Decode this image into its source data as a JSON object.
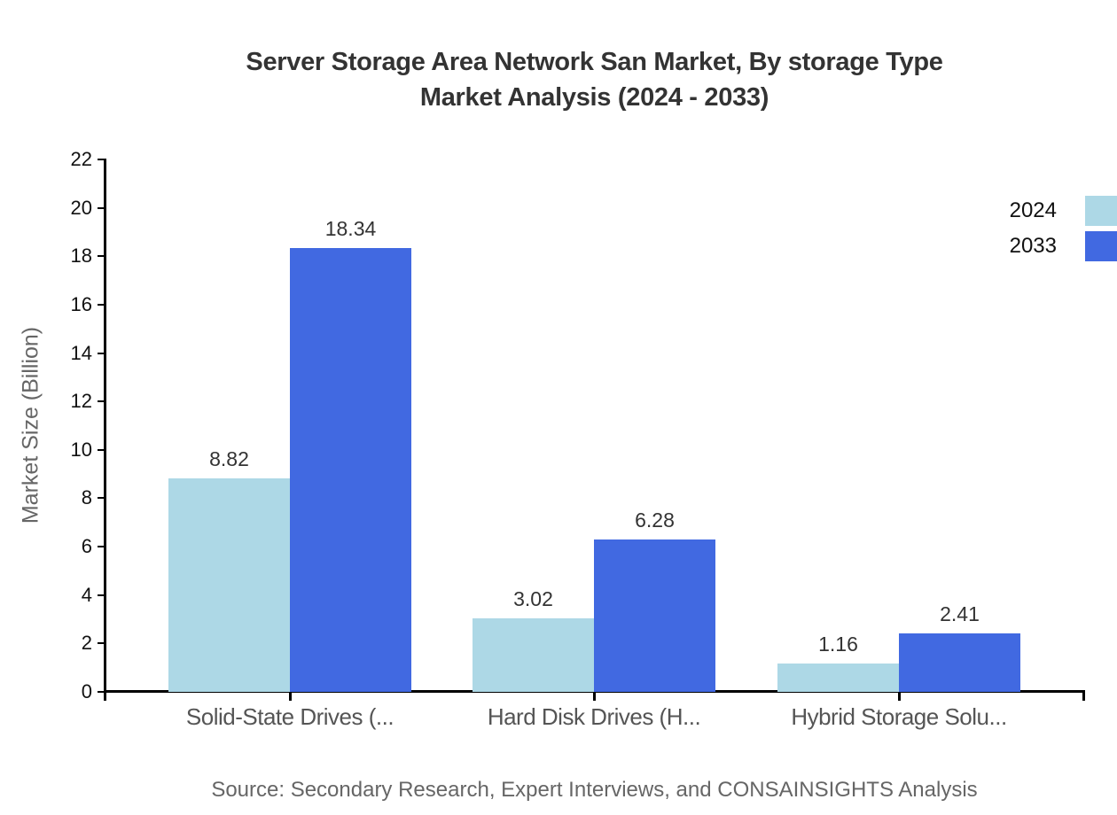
{
  "title": {
    "line1": "Server Storage Area Network San Market, By storage Type",
    "line2": "Market Analysis (2024 - 2033)"
  },
  "source": {
    "text": "Source: Secondary Research, Expert Interviews, and CONSAINSIGHTS Analysis"
  },
  "chart_data": {
    "type": "bar",
    "title": "Server Storage Area Network San Market, By storage Type Market Analysis (2024 - 2033)",
    "categories": [
      "Solid-State Drives (...",
      "Hard Disk Drives (H...",
      "Hybrid Storage Solu..."
    ],
    "series": [
      {
        "name": "2024",
        "color": "#ADD8E6",
        "values": [
          8.82,
          3.02,
          1.16
        ]
      },
      {
        "name": "2033",
        "color": "#4169E1",
        "values": [
          18.34,
          6.28,
          2.41
        ]
      }
    ],
    "xlabel": "",
    "ylabel": "Market Size (Billion)",
    "ylim": [
      0,
      22
    ],
    "ytick_step": 2,
    "grid": false,
    "legend_position": "top-right-outside",
    "value_labels": true,
    "axis_color": "#000000",
    "value_label_color": "#333333",
    "tick_label_color": "#111111",
    "category_label_color": "#555555"
  }
}
